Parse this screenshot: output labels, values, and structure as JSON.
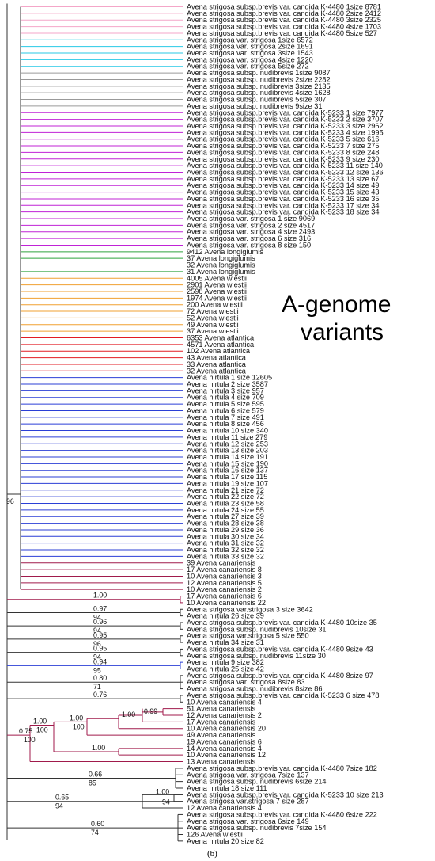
{
  "annotation": [
    "A-genome",
    "variants"
  ],
  "caption": "(b)",
  "root_support": "96",
  "colors": {
    "pink": "#f4a6c8",
    "cyan": "#27c9e6",
    "gray": "#9a9a9a",
    "purple": "#c023d6",
    "green": "#2ea33d",
    "orange": "#f0a030",
    "red": "#e21b23",
    "blue": "#2b3fd6",
    "crimson": "#a01a4b",
    "black": "#333333"
  },
  "leaves": [
    {
      "label": "Avena strigosa subsp.brevis var. candida K-4480 1size 8781",
      "color": "pink"
    },
    {
      "label": "Avena strigosa subsp.brevis var. candida K-4480 2size 2412",
      "color": "pink"
    },
    {
      "label": "Avena strigosa subsp.brevis var. candida K-4480 3size 2325",
      "color": "pink"
    },
    {
      "label": "Avena strigosa subsp.brevis var. candida K-4480 4size 1703",
      "color": "pink"
    },
    {
      "label": "Avena strigosa subsp.brevis var. candida K-4480 5size 527",
      "color": "pink"
    },
    {
      "label": "Avena strigosa var. strigosa 1size 6572",
      "color": "cyan"
    },
    {
      "label": "Avena strigosa var. strigosa 2size 1691",
      "color": "cyan"
    },
    {
      "label": "Avena strigosa var. strigosa 3size 1543",
      "color": "cyan"
    },
    {
      "label": "Avena strigosa var. strigosa 4size 1220",
      "color": "cyan"
    },
    {
      "label": "Avena strigosa var. strigosa 5size 272",
      "color": "cyan"
    },
    {
      "label": "Avena strigosa subsp. nudibrevis 1size 9087",
      "color": "gray"
    },
    {
      "label": "Avena strigosa subsp. nudibrevis 2size 2282",
      "color": "gray"
    },
    {
      "label": "Avena strigosa subsp. nudibrevis 3size 2135",
      "color": "gray"
    },
    {
      "label": "Avena strigosa subsp. nudibrevis 4size 1628",
      "color": "gray"
    },
    {
      "label": "Avena strigosa subsp. nudibrevis 5size 307",
      "color": "gray"
    },
    {
      "label": "Avena strigosa subsp. nudibrevis 9size 31",
      "color": "gray"
    },
    {
      "label": "Avena strigosa subsp.brevis var. candida K-5233 1 size 7977",
      "color": "purple"
    },
    {
      "label": "Avena strigosa subsp.brevis var. candida K-5233 2 size 3707",
      "color": "purple"
    },
    {
      "label": "Avena strigosa subsp.brevis var. candida K-5233 3 size 2962",
      "color": "purple"
    },
    {
      "label": "Avena strigosa subsp.brevis var. candida K-5233 4 size 1995",
      "color": "purple"
    },
    {
      "label": "Avena strigosa subsp.brevis var. candida K-5233 5 size 616",
      "color": "purple"
    },
    {
      "label": "Avena strigosa subsp.brevis var. candida K-5233 7 size 275",
      "color": "purple"
    },
    {
      "label": "Avena strigosa subsp.brevis var. candida K-5233 8 size 248",
      "color": "purple"
    },
    {
      "label": "Avena strigosa subsp.brevis var. candida K-5233 9 size 230",
      "color": "purple"
    },
    {
      "label": "Avena strigosa subsp.brevis var. candida K-5233 11 size 140",
      "color": "purple"
    },
    {
      "label": "Avena strigosa subsp.brevis var. candida K-5233 12 size 136",
      "color": "purple"
    },
    {
      "label": "Avena strigosa subsp.brevis var. candida K-5233 13 size 67",
      "color": "purple"
    },
    {
      "label": "Avena strigosa subsp.brevis var. candida K-5233 14 size 49",
      "color": "purple"
    },
    {
      "label": "Avena strigosa subsp.brevis var. candida K-5233 15 size 43",
      "color": "purple"
    },
    {
      "label": "Avena strigosa subsp.brevis var. candida K-5233 16 size 35",
      "color": "purple"
    },
    {
      "label": "Avena strigosa subsp.brevis var. candida K-5233 17 size 34",
      "color": "purple"
    },
    {
      "label": "Avena strigosa subsp.brevis var. candida K-5233 18 size 34",
      "color": "purple"
    },
    {
      "label": "Avena strigosa var. strigosa 1 size 9069",
      "color": "purple"
    },
    {
      "label": "Avena strigosa var. strigosa 2 size 4517",
      "color": "purple"
    },
    {
      "label": "Avena strigosa var. strigosa 4 size 2493",
      "color": "purple"
    },
    {
      "label": "Avena strigosa var. strigosa 6 size 316",
      "color": "purple"
    },
    {
      "label": "Avena strigosa var. strigosa 8 size 150",
      "color": "purple"
    },
    {
      "label": "9412 Avena longiglumis",
      "color": "green"
    },
    {
      "label": "37 Avena longiglumis",
      "color": "green"
    },
    {
      "label": "32 Avena longiglumis",
      "color": "green"
    },
    {
      "label": "31 Avena longiglumis",
      "color": "green"
    },
    {
      "label": "4005 Avena wiestii",
      "color": "orange"
    },
    {
      "label": "2901 Avena wiestii",
      "color": "orange"
    },
    {
      "label": "2598 Avena wiestii",
      "color": "orange"
    },
    {
      "label": "1974 Avena wiestii",
      "color": "orange"
    },
    {
      "label": "200 Avena wiestii",
      "color": "orange"
    },
    {
      "label": "72 Avena wiestii",
      "color": "orange"
    },
    {
      "label": "52 Avena wiestii",
      "color": "orange"
    },
    {
      "label": "49 Avena wiestii",
      "color": "orange"
    },
    {
      "label": "37 Avena wiestii",
      "color": "orange"
    },
    {
      "label": "6353 Avena atlantica",
      "color": "red"
    },
    {
      "label": "4571 Avena atlantica",
      "color": "red"
    },
    {
      "label": "102 Avena atlantica",
      "color": "red"
    },
    {
      "label": "43 Avena atlantica",
      "color": "red"
    },
    {
      "label": "33 Avena atlantica",
      "color": "red"
    },
    {
      "label": "32 Avena atlantica",
      "color": "red"
    },
    {
      "label": "Avena hirtula 1 size 12605",
      "color": "blue"
    },
    {
      "label": "Avena hirtula 2 size 3587",
      "color": "blue"
    },
    {
      "label": "Avena hirtula 3 size 957",
      "color": "blue"
    },
    {
      "label": "Avena hirtula 4 size 709",
      "color": "blue"
    },
    {
      "label": "Avena hirtula 5 size 595",
      "color": "blue"
    },
    {
      "label": "Avena hirtula 6 size 579",
      "color": "blue"
    },
    {
      "label": "Avena hirtula 7 size 491",
      "color": "blue"
    },
    {
      "label": "Avena hirtula 8 size 456",
      "color": "blue"
    },
    {
      "label": "Avena hirtula 10 size 340",
      "color": "blue"
    },
    {
      "label": "Avena hirtula 11 size 279",
      "color": "blue"
    },
    {
      "label": "Avena hirtula 12 size 253",
      "color": "blue"
    },
    {
      "label": "Avena hirtula 13 size 203",
      "color": "blue"
    },
    {
      "label": "Avena hirtula 14 size 191",
      "color": "blue"
    },
    {
      "label": "Avena hirtula 15 size 190",
      "color": "blue"
    },
    {
      "label": "Avena hirtula 16 size 137",
      "color": "blue"
    },
    {
      "label": "Avena hirtula 17 size 115",
      "color": "blue"
    },
    {
      "label": "Avena hirtula 19 size 107",
      "color": "blue"
    },
    {
      "label": "Avena hirtula 21 size 72",
      "color": "blue"
    },
    {
      "label": "Avena hirtula 22 size 72",
      "color": "blue"
    },
    {
      "label": "Avena hirtula 23 size 58",
      "color": "blue"
    },
    {
      "label": "Avena hirtula 24 size 55",
      "color": "blue"
    },
    {
      "label": "Avena hirtula 27 size 39",
      "color": "blue"
    },
    {
      "label": "Avena hirtula 28 size 38",
      "color": "blue"
    },
    {
      "label": "Avena hirtula 29 size 36",
      "color": "blue"
    },
    {
      "label": "Avena hirtula 30 size 34",
      "color": "blue"
    },
    {
      "label": "Avena hirtula 31 size 32",
      "color": "blue"
    },
    {
      "label": "Avena hirtula 32 size 32",
      "color": "blue"
    },
    {
      "label": "Avena hirtula 33 size 32",
      "color": "blue"
    },
    {
      "label": "39 Avena canariensis",
      "color": "crimson"
    },
    {
      "label": "17 Avena canariensis 8",
      "color": "crimson"
    },
    {
      "label": "10 Avena canariensis 3",
      "color": "crimson"
    },
    {
      "label": "12 Avena canariensis 5",
      "color": "crimson"
    },
    {
      "label": "10 Avena canariensis 2",
      "color": "crimson"
    },
    {
      "label": "17 Avena canariensis 6",
      "color": "crimson"
    },
    {
      "label": "10 Avena canariensis 22",
      "color": "crimson"
    },
    {
      "label": "Avena strigosa var.strigosa 3 size 3642",
      "color": "black"
    },
    {
      "label": "Avena hirtula 26 size 39",
      "color": "black"
    },
    {
      "label": "Avena strigosa subsp.brevis var. candida K-4480 10size 35",
      "color": "black"
    },
    {
      "label": "Avena strigosa subsp. nudibrevis 10size 31",
      "color": "black"
    },
    {
      "label": "Avena strigosa var.strigosa 5 size 550",
      "color": "black"
    },
    {
      "label": "Avena hirtula 34 size 31",
      "color": "black"
    },
    {
      "label": "Avena strigosa subsp.brevis var. candida K-4480 9size 43",
      "color": "black"
    },
    {
      "label": "Avena strigosa subsp. nudibrevis 11size 30",
      "color": "black"
    },
    {
      "label": "Avena hirtula 9 size 382",
      "color": "blue"
    },
    {
      "label": "Avena hirtula 25 size 42",
      "color": "blue"
    },
    {
      "label": "Avena strigosa subsp.brevis var. candida K-4480 8size 97",
      "color": "black"
    },
    {
      "label": "Avena strigosa var. strigosa 8size 83",
      "color": "black"
    },
    {
      "label": "Avena strigosa subsp. nudibrevis 8size 86",
      "color": "black"
    },
    {
      "label": "Avena strigosa subsp.brevis var. candida K-5233 6 size 478",
      "color": "black"
    },
    {
      "label": "10 Avena canariensis 4",
      "color": "black"
    },
    {
      "label": "51 Avena canariensis",
      "color": "crimson"
    },
    {
      "label": "12 Avena canariensis 2",
      "color": "crimson"
    },
    {
      "label": "17 Avena canariensis",
      "color": "crimson"
    },
    {
      "label": "10 Avena canariensis 20",
      "color": "crimson"
    },
    {
      "label": "49 Avena canariensis",
      "color": "crimson"
    },
    {
      "label": "19 Avena canariensis 6",
      "color": "crimson"
    },
    {
      "label": "14 Avena canariensis 4",
      "color": "crimson"
    },
    {
      "label": "10 Avena canariensis 12",
      "color": "crimson"
    },
    {
      "label": "13 Avena canariensis",
      "color": "crimson"
    },
    {
      "label": "Avena strigosa subsp.brevis var. candida K-4480 7size 182",
      "color": "black"
    },
    {
      "label": "Avena strigosa var. strigosa 7size 137",
      "color": "black"
    },
    {
      "label": "Avena strigosa subsp. nudibrevis 6size 214",
      "color": "black"
    },
    {
      "label": "Avena hirtula 18 size 111",
      "color": "black"
    },
    {
      "label": "Avena strigosa subsp.brevis var. candida K-5233 10 size 213",
      "color": "black"
    },
    {
      "label": "Avena strigosa var.strigosa 7 size 287",
      "color": "black"
    },
    {
      "label": "12 Avena canariensis 4",
      "color": "black"
    },
    {
      "label": "Avena strigosa subsp.brevis var. candida K-4480 6size 222",
      "color": "black"
    },
    {
      "label": "Avena strigosa var. strigosa 6size 149",
      "color": "black"
    },
    {
      "label": "Avena strigosa subsp. nudibrevis 7size 154",
      "color": "black"
    },
    {
      "label": "126 Avena wiestii",
      "color": "black"
    },
    {
      "label": "Avena hirtula 20 size 82",
      "color": "black"
    }
  ],
  "clades": [
    {
      "from": 89,
      "to": 90,
      "support": "1.00",
      "support2": "",
      "color": "crimson"
    },
    {
      "from": 91,
      "to": 92,
      "support": "0.97",
      "support2": "94",
      "color": "black"
    },
    {
      "from": 93,
      "to": 94,
      "support": "0.96",
      "support2": "94",
      "color": "black"
    },
    {
      "from": 95,
      "to": 96,
      "support": "0.95",
      "support2": "96",
      "color": "black"
    },
    {
      "from": 97,
      "to": 98,
      "support": "0.95",
      "support2": "94",
      "color": "black"
    },
    {
      "from": 99,
      "to": 100,
      "support": "0.94",
      "support2": "95",
      "color": "blue"
    },
    {
      "from": 101,
      "to": 103,
      "support": "0.80",
      "support2": "71",
      "color": "black"
    },
    {
      "from": 104,
      "to": 105,
      "support": "0.76",
      "support2": "",
      "color": "black"
    },
    {
      "from": 106,
      "to": 114,
      "support": "0.75",
      "support2": "100",
      "color": "crimson"
    },
    {
      "from": 115,
      "to": 118,
      "support": "0.66",
      "support2": "85",
      "color": "black"
    },
    {
      "from": 119,
      "to": 121,
      "support": "0.65",
      "support2": "94",
      "color": "black"
    },
    {
      "from": 122,
      "to": 126,
      "support": "0.60",
      "support2": "74",
      "color": "black"
    }
  ],
  "subclades": [
    {
      "label": "0.99",
      "label2": ""
    },
    {
      "label": "1.00",
      "label2": ""
    },
    {
      "label": "1.00",
      "label2": "100"
    },
    {
      "label": "1.00",
      "label2": "100"
    },
    {
      "label": "1.00",
      "label2": ""
    },
    {
      "label": "1.00",
      "label2": "94"
    }
  ]
}
